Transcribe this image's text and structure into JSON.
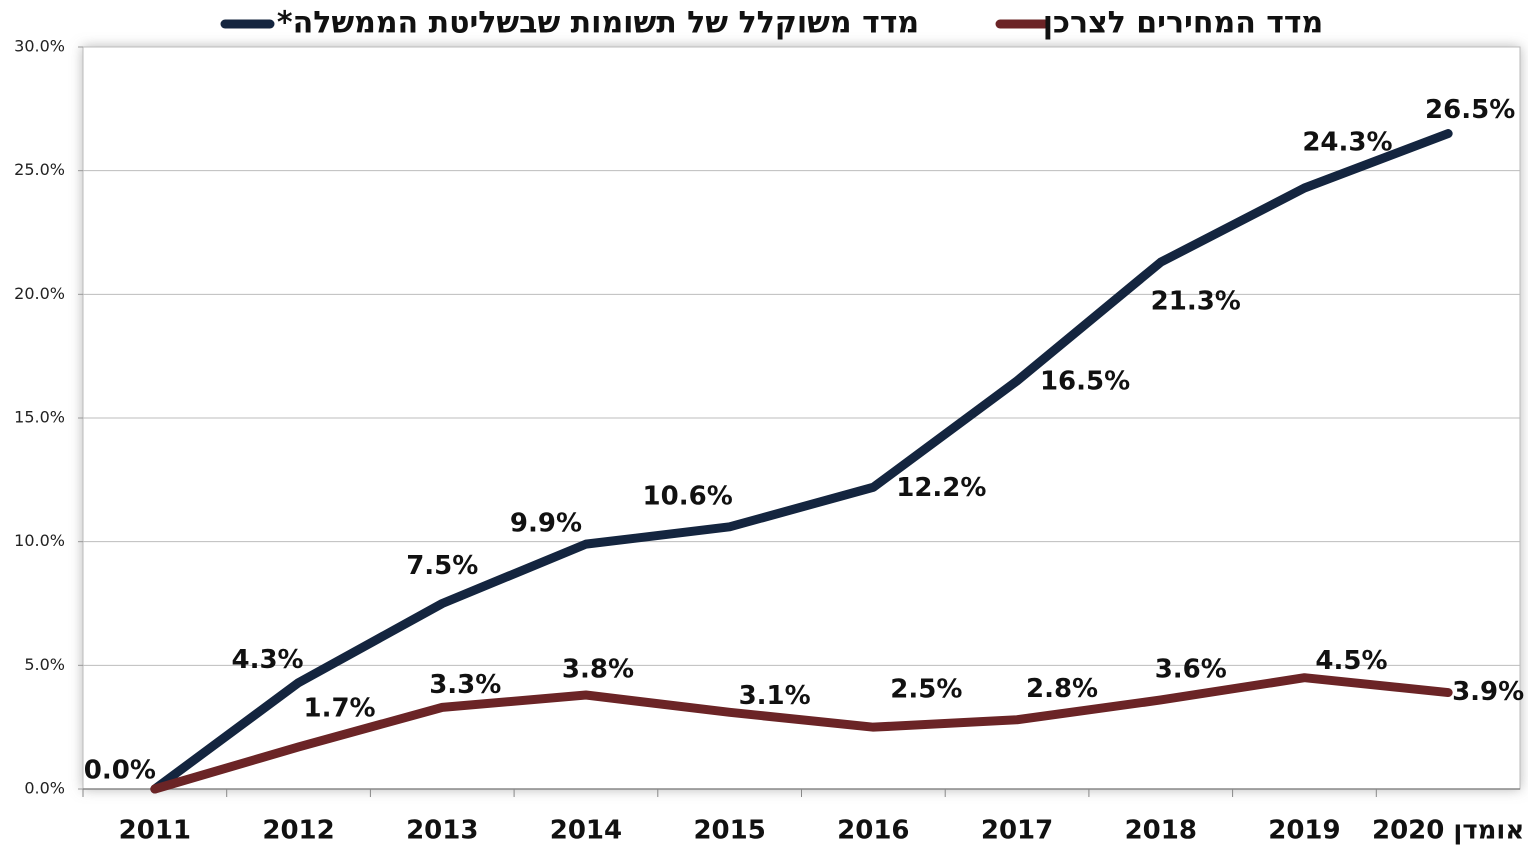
{
  "chart_data": {
    "type": "line",
    "categories": [
      "2011",
      "2012",
      "2013",
      "2014",
      "2015",
      "2016",
      "2017",
      "2018",
      "2019",
      "אומדן 2020"
    ],
    "series": [
      {
        "name": "מדד משוקלל של תשומות שבשליטת הממשלה*",
        "color": "#14253f",
        "values": [
          0.0,
          4.3,
          7.5,
          9.9,
          10.6,
          12.2,
          16.5,
          21.3,
          24.3,
          26.5
        ],
        "value_labels": [
          "0.0%",
          "4.3%",
          "7.5%",
          "9.9%",
          "10.6%",
          "12.2%",
          "16.5%",
          "21.3%",
          "24.3%",
          "26.5%"
        ]
      },
      {
        "name": "מדד המחירים לצרכן",
        "color": "#6b2426",
        "values": [
          0.0,
          1.7,
          3.3,
          3.8,
          3.1,
          2.5,
          2.8,
          3.6,
          4.5,
          3.9
        ],
        "value_labels": [
          null,
          "1.7%",
          "3.3%",
          "3.8%",
          "3.1%",
          "2.5%",
          "2.8%",
          "3.6%",
          "4.5%",
          "3.9%"
        ]
      }
    ],
    "ylim": [
      0,
      30
    ],
    "yticks": [
      {
        "value": 0,
        "label": "0.0%"
      },
      {
        "value": 5,
        "label": "5.0%"
      },
      {
        "value": 10,
        "label": "10.0%"
      },
      {
        "value": 15,
        "label": "15.0%"
      },
      {
        "value": 20,
        "label": "20.0%"
      },
      {
        "value": 25,
        "label": "25.0%"
      },
      {
        "value": 30,
        "label": "30.0%"
      }
    ],
    "grid": true,
    "legend": "top"
  }
}
